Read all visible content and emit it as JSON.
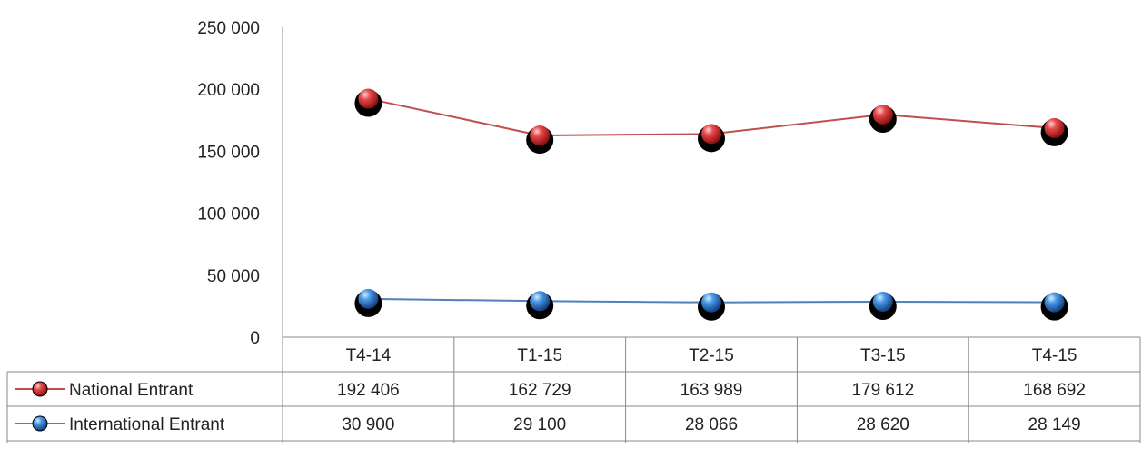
{
  "chart_data": {
    "type": "line",
    "categories": [
      "T4-14",
      "T1-15",
      "T2-15",
      "T3-15",
      "T4-15"
    ],
    "ylim": [
      0,
      250000
    ],
    "yticks": [
      "0",
      "50 000",
      "100 000",
      "150 000",
      "200 000",
      "250 000"
    ],
    "grid": false,
    "legend": "data-table-left",
    "series": [
      {
        "name": "National Entrant",
        "values": [
          192406,
          162729,
          163989,
          179612,
          168692
        ],
        "labels": [
          "192 406",
          "162 729",
          "163 989",
          "179 612",
          "168 692"
        ],
        "color": "#c0504d",
        "marker_color": "#e03c3c"
      },
      {
        "name": "International Entrant",
        "values": [
          30900,
          29100,
          28066,
          28620,
          28149
        ],
        "labels": [
          "30 900",
          "29 100",
          "28 066",
          "28 620",
          "28 149"
        ],
        "color": "#4f81bd",
        "marker_color": "#3d8ae0"
      }
    ]
  }
}
